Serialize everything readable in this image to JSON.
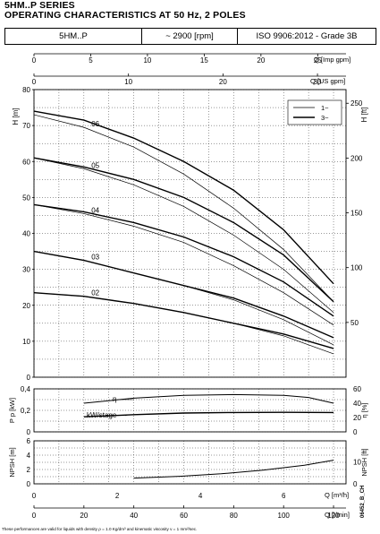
{
  "header": {
    "series": "5HM..P SERIES",
    "subtitle": "OPERATING CHARACTERISTICS AT 50 Hz, 2 POLES",
    "model": "5HM..P",
    "speed": "~ 2900 [rpm]",
    "standard": "ISO 9906:2012 - Grade 3B"
  },
  "footer": {
    "note": "These performances are valid for liquids with density ρ = 1.0 Kg/dm³ and kinematic viscosity ν = 1 mm²/sec.",
    "code": "06452_B_CH"
  },
  "chart_data": [
    {
      "type": "line",
      "name": "head-curves",
      "xlabel": "Q [l/min]",
      "ylabel": "H [m]",
      "y2label": "H [ft]",
      "xlim": [
        0,
        125
      ],
      "ylim": [
        0,
        80
      ],
      "grid": true,
      "legend_position": "top-right",
      "legend": [
        "1~",
        "3~"
      ],
      "top_axes": [
        {
          "label": "Q [Imp gpm]",
          "ticks": [
            0,
            5,
            10,
            15,
            20,
            25
          ]
        },
        {
          "label": "Q [US gpm]",
          "ticks": [
            0,
            10,
            20,
            30
          ]
        }
      ],
      "y2_ticks": [
        50,
        100,
        150,
        200,
        250
      ],
      "curve_labels": [
        "02",
        "03",
        "04",
        "05",
        "06"
      ],
      "series": [
        {
          "label": "02",
          "phase": "1~",
          "x": [
            0,
            20,
            40,
            60,
            80,
            100,
            120
          ],
          "y": [
            23.5,
            22.5,
            20.5,
            18.0,
            15.0,
            11.5,
            6.5
          ]
        },
        {
          "label": "02",
          "phase": "3~",
          "x": [
            0,
            20,
            40,
            60,
            80,
            100,
            120
          ],
          "y": [
            23.5,
            22.5,
            20.5,
            18.0,
            15.0,
            12.0,
            8.0
          ]
        },
        {
          "label": "03",
          "phase": "1~",
          "x": [
            0,
            20,
            40,
            60,
            80,
            100,
            120
          ],
          "y": [
            35.0,
            32.5,
            29.0,
            25.5,
            21.5,
            16.0,
            9.0
          ]
        },
        {
          "label": "03",
          "phase": "3~",
          "x": [
            0,
            20,
            40,
            60,
            80,
            100,
            120
          ],
          "y": [
            35.0,
            32.5,
            29.0,
            25.5,
            22.0,
            17.0,
            11.0
          ]
        },
        {
          "label": "04",
          "phase": "1~",
          "x": [
            0,
            20,
            40,
            60,
            80,
            100,
            120
          ],
          "y": [
            48.0,
            45.5,
            42.0,
            37.5,
            31.0,
            23.5,
            14.5
          ]
        },
        {
          "label": "04",
          "phase": "3~",
          "x": [
            0,
            20,
            40,
            60,
            80,
            100,
            120
          ],
          "y": [
            48.0,
            46.0,
            43.0,
            39.0,
            33.5,
            26.5,
            17.0
          ]
        },
        {
          "label": "05",
          "phase": "1~",
          "x": [
            0,
            20,
            40,
            60,
            80,
            100,
            120
          ],
          "y": [
            61.0,
            58.0,
            53.5,
            47.5,
            39.5,
            30.0,
            18.0
          ]
        },
        {
          "label": "05",
          "phase": "3~",
          "x": [
            0,
            20,
            40,
            60,
            80,
            100,
            120
          ],
          "y": [
            61.0,
            58.5,
            55.0,
            50.0,
            43.0,
            34.0,
            21.0
          ]
        },
        {
          "label": "06",
          "phase": "1~",
          "x": [
            0,
            20,
            40,
            60,
            80,
            100,
            120
          ],
          "y": [
            73.0,
            69.5,
            64.0,
            56.5,
            47.0,
            35.5,
            21.0
          ]
        },
        {
          "label": "06",
          "phase": "3~",
          "x": [
            0,
            20,
            40,
            60,
            80,
            100,
            120
          ],
          "y": [
            74.0,
            71.5,
            66.5,
            60.0,
            52.0,
            41.0,
            26.0
          ]
        }
      ]
    },
    {
      "type": "line",
      "name": "power-efficiency",
      "ylabel": "P p [kW]",
      "y2label": "η [%]",
      "xlim": [
        0,
        125
      ],
      "ylim": [
        0,
        0.4
      ],
      "y2lim": [
        0,
        60
      ],
      "y_ticks": [
        0,
        0.2,
        0.4
      ],
      "y2_ticks": [
        0,
        20,
        40,
        60
      ],
      "labels": [
        "η",
        "kW/stage"
      ],
      "series": [
        {
          "name": "η",
          "x": [
            20,
            40,
            60,
            80,
            100,
            110,
            120
          ],
          "y": [
            40,
            47,
            51,
            52,
            51,
            48,
            40
          ]
        },
        {
          "name": "kW/stage",
          "x": [
            20,
            40,
            60,
            80,
            100,
            120
          ],
          "y": [
            0.14,
            0.16,
            0.175,
            0.18,
            0.182,
            0.18
          ]
        }
      ]
    },
    {
      "type": "line",
      "name": "npsh",
      "xlabel": "Q [m³/h]",
      "ylabel": "NPSH [m]",
      "y2label": "NPSH [ft]",
      "xlim": [
        0,
        7.5
      ],
      "ylim": [
        0,
        6
      ],
      "x_ticks": [
        0,
        2,
        4,
        6
      ],
      "y_ticks": [
        0,
        2,
        4,
        6
      ],
      "y2_ticks": [
        0,
        10
      ],
      "series": [
        {
          "name": "NPSH",
          "x": [
            2.4,
            3.5,
            4.5,
            5.5,
            6.5,
            7.2
          ],
          "y": [
            0.8,
            1.05,
            1.4,
            1.9,
            2.6,
            3.3
          ]
        }
      ]
    }
  ],
  "bottom_axis": {
    "label": "Q [l/min]",
    "ticks": [
      0,
      20,
      40,
      60,
      80,
      100,
      120
    ]
  }
}
